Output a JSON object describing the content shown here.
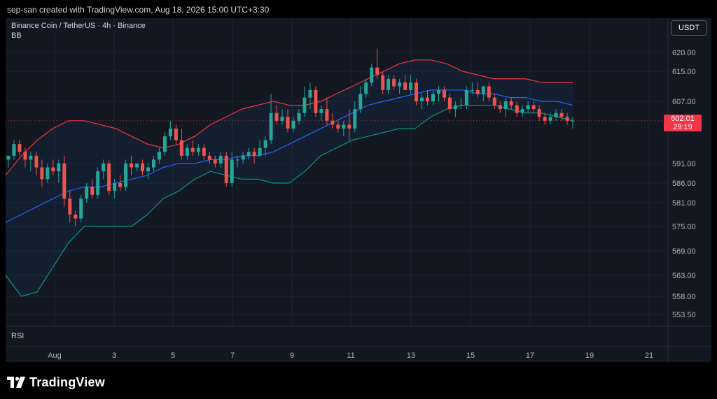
{
  "header": {
    "credit": "sep-san created with TradingView.com, Aug 18, 2026 15:00 UTC+3:30"
  },
  "legend": {
    "symbol": "Binance Coin / TetherUS · 4h · Binance",
    "indicator": "BB"
  },
  "currency": "USDT",
  "rsi_label": "RSI",
  "brand": {
    "name": "TradingView"
  },
  "price_label": {
    "price": "602.01",
    "countdown": "29:19"
  },
  "colors": {
    "up": "#26a69a",
    "down": "#ef5350",
    "bb_upper": "#f23645",
    "bb_basis": "#2962ff",
    "bb_lower": "#089981",
    "bb_fill": "#2196f3"
  },
  "chart_data": {
    "type": "candlestick",
    "x_tick_labels": [
      "Aug",
      "3",
      "5",
      "7",
      "9",
      "11",
      "13",
      "15",
      "17",
      "19",
      "21"
    ],
    "y_tick_labels": [
      "620.00",
      "615.00",
      "607.00",
      "591.00",
      "586.00",
      "581.00",
      "575.00",
      "569.00",
      "563.00",
      "558.00",
      "553.50"
    ],
    "last_price": 602.01,
    "candles": [
      [
        592,
        593,
        590,
        593
      ],
      [
        593,
        597,
        592,
        596
      ],
      [
        596,
        597,
        593,
        594
      ],
      [
        594,
        595,
        590,
        592
      ],
      [
        592,
        594,
        589,
        593
      ],
      [
        593,
        594,
        588,
        590
      ],
      [
        590,
        592,
        585,
        587
      ],
      [
        587,
        591,
        586,
        590
      ],
      [
        590,
        592,
        588,
        589
      ],
      [
        589,
        592,
        586,
        591
      ],
      [
        591,
        593,
        580,
        582
      ],
      [
        582,
        584,
        576,
        578
      ],
      [
        578,
        579,
        575,
        577
      ],
      [
        577,
        583,
        576,
        582
      ],
      [
        582,
        586,
        581,
        585
      ],
      [
        585,
        587,
        582,
        583
      ],
      [
        583,
        590,
        582,
        589
      ],
      [
        589,
        592,
        587,
        591
      ],
      [
        591,
        592,
        583,
        584
      ],
      [
        584,
        587,
        582,
        586
      ],
      [
        586,
        588,
        584,
        585
      ],
      [
        585,
        592,
        584,
        591
      ],
      [
        591,
        593,
        588,
        590
      ],
      [
        590,
        591,
        589,
        591
      ],
      [
        591,
        592,
        588,
        589
      ],
      [
        589,
        591,
        587,
        590
      ],
      [
        590,
        593,
        589,
        592
      ],
      [
        592,
        595,
        591,
        594
      ],
      [
        594,
        599,
        593,
        598
      ],
      [
        598,
        602,
        597,
        600
      ],
      [
        600,
        601,
        596,
        597
      ],
      [
        597,
        600,
        592,
        593
      ],
      [
        593,
        596,
        592,
        595
      ],
      [
        595,
        597,
        593,
        594
      ],
      [
        594,
        596,
        593,
        595
      ],
      [
        595,
        596,
        592,
        593
      ],
      [
        593,
        594,
        591,
        592
      ],
      [
        592,
        593,
        590,
        591
      ],
      [
        591,
        594,
        590,
        593
      ],
      [
        593,
        594,
        585,
        586
      ],
      [
        586,
        594,
        585,
        592
      ],
      [
        592,
        593,
        590,
        592
      ],
      [
        592,
        594,
        591,
        593
      ],
      [
        593,
        595,
        592,
        594
      ],
      [
        594,
        595,
        591,
        593
      ],
      [
        593,
        597,
        593,
        595
      ],
      [
        595,
        598,
        593,
        597
      ],
      [
        597,
        609,
        596,
        604
      ],
      [
        604,
        606,
        601,
        602
      ],
      [
        602,
        605,
        601,
        603
      ],
      [
        603,
        605,
        599,
        600
      ],
      [
        600,
        603,
        599,
        602
      ],
      [
        602,
        605,
        601,
        604
      ],
      [
        604,
        611,
        603,
        608
      ],
      [
        608,
        612,
        605,
        610
      ],
      [
        610,
        611,
        603,
        604
      ],
      [
        604,
        606,
        602,
        605
      ],
      [
        605,
        608,
        601,
        602
      ],
      [
        602,
        604,
        600,
        601
      ],
      [
        601,
        602,
        599,
        600
      ],
      [
        600,
        602,
        598,
        601
      ],
      [
        601,
        605,
        597,
        600
      ],
      [
        600,
        607,
        599,
        605
      ],
      [
        605,
        611,
        604,
        609
      ],
      [
        609,
        613,
        608,
        612
      ],
      [
        612,
        617,
        611,
        616
      ],
      [
        616,
        621,
        613,
        614
      ],
      [
        614,
        615,
        609,
        610
      ],
      [
        610,
        614,
        609,
        613
      ],
      [
        613,
        614,
        610,
        611
      ],
      [
        611,
        613,
        609,
        612
      ],
      [
        612,
        614,
        610,
        610
      ],
      [
        610,
        614,
        609,
        612
      ],
      [
        612,
        613,
        606,
        607
      ],
      [
        607,
        609,
        605,
        608
      ],
      [
        608,
        610,
        606,
        607
      ],
      [
        607,
        610,
        606,
        609
      ],
      [
        609,
        611,
        607,
        610
      ],
      [
        610,
        611,
        607,
        608
      ],
      [
        608,
        609,
        604,
        605
      ],
      [
        605,
        607,
        603,
        606
      ],
      [
        606,
        608,
        605,
        606
      ],
      [
        606,
        611,
        605,
        610
      ],
      [
        610,
        612,
        609,
        610
      ],
      [
        610,
        612,
        608,
        609
      ],
      [
        609,
        611,
        607,
        611
      ],
      [
        611,
        612,
        607,
        608
      ],
      [
        608,
        609,
        605,
        606
      ],
      [
        606,
        607,
        604,
        605
      ],
      [
        605,
        608,
        603,
        607
      ],
      [
        607,
        608,
        605,
        606
      ],
      [
        606,
        607,
        603,
        604
      ],
      [
        604,
        606,
        603,
        605
      ],
      [
        605,
        607,
        604,
        606
      ],
      [
        606,
        607,
        604,
        605
      ],
      [
        605,
        606,
        602,
        603
      ],
      [
        603,
        604,
        601,
        602
      ],
      [
        602,
        604,
        601,
        603
      ],
      [
        603,
        605,
        602,
        604
      ],
      [
        604,
        605,
        602,
        603
      ],
      [
        603,
        604,
        601,
        602
      ],
      [
        602,
        603,
        600,
        602
      ]
    ],
    "bollinger": {
      "upper": [
        588,
        593,
        597,
        600,
        602,
        602,
        601,
        600,
        598,
        596,
        595,
        596,
        598,
        601,
        603,
        605,
        606,
        607,
        606,
        606,
        607,
        609,
        611,
        613,
        615,
        617,
        618,
        618,
        617,
        615,
        614,
        613,
        613,
        613,
        612,
        612,
        612
      ],
      "basis": [
        576,
        578,
        580,
        582,
        584,
        585,
        585,
        586,
        587,
        588,
        590,
        591,
        591,
        592,
        592,
        593,
        593,
        594,
        596,
        598,
        600,
        602,
        604,
        606,
        607,
        608,
        609,
        610,
        610,
        610,
        609,
        609,
        608,
        608,
        607,
        607,
        606
      ],
      "lower": [
        563,
        558,
        559,
        565,
        571,
        575,
        575,
        575,
        575,
        578,
        582,
        584,
        587,
        589,
        588,
        587,
        587,
        586,
        586,
        589,
        593,
        595,
        597,
        598,
        599,
        600,
        600,
        603,
        605,
        606,
        606,
        606,
        605,
        604,
        604,
        603,
        602
      ]
    }
  }
}
